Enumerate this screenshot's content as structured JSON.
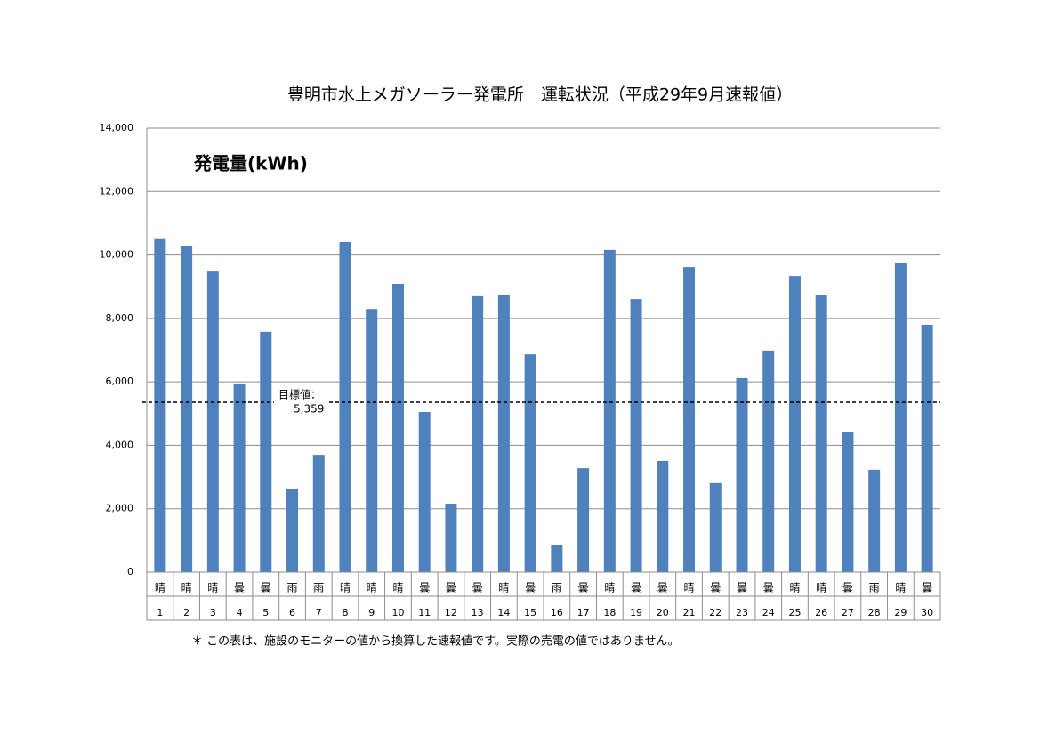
{
  "chart_data": {
    "type": "bar",
    "title": "豊明市水上メガソーラー発電所　運転状況（平成29年9月速報値）",
    "subtitle": "発電量(kWh)",
    "footnote": "＊ この表は、施設のモニターの値から換算した速報値です。実際の売電の値ではありません。",
    "categories": [
      "1",
      "2",
      "3",
      "4",
      "5",
      "6",
      "7",
      "8",
      "9",
      "10",
      "11",
      "12",
      "13",
      "14",
      "15",
      "16",
      "17",
      "18",
      "19",
      "20",
      "21",
      "22",
      "23",
      "24",
      "25",
      "26",
      "27",
      "28",
      "29",
      "30"
    ],
    "weather": [
      "晴",
      "晴",
      "晴",
      "曇",
      "曇",
      "雨",
      "雨",
      "晴",
      "晴",
      "晴",
      "曇",
      "曇",
      "曇",
      "晴",
      "曇",
      "雨",
      "曇",
      "晴",
      "曇",
      "曇",
      "晴",
      "曇",
      "曇",
      "曇",
      "晴",
      "晴",
      "曇",
      "雨",
      "晴",
      "曇"
    ],
    "values": [
      10500,
      10270,
      9480,
      5950,
      7580,
      2610,
      3700,
      10410,
      8300,
      9090,
      5050,
      2160,
      8700,
      8750,
      6870,
      870,
      3280,
      10160,
      8610,
      3510,
      9620,
      2810,
      6120,
      6990,
      9340,
      8730,
      4430,
      3230,
      9760,
      7800
    ],
    "color": "#4f81bd",
    "ylim": [
      0,
      14000
    ],
    "yticks": [
      0,
      {
        "value": 2000,
        "label": "2,000"
      },
      {
        "value": 4000,
        "label": "4,000"
      },
      {
        "value": 6000,
        "label": "6,000"
      },
      {
        "value": 8000,
        "label": "8,000"
      },
      {
        "value": 10000,
        "label": "10,000"
      },
      {
        "value": 12000,
        "label": "12,000"
      },
      {
        "value": 14000,
        "label": "14,000"
      }
    ],
    "grid": true,
    "target": {
      "label": "目標値：",
      "value": 5359,
      "value_label": "5,359"
    }
  }
}
